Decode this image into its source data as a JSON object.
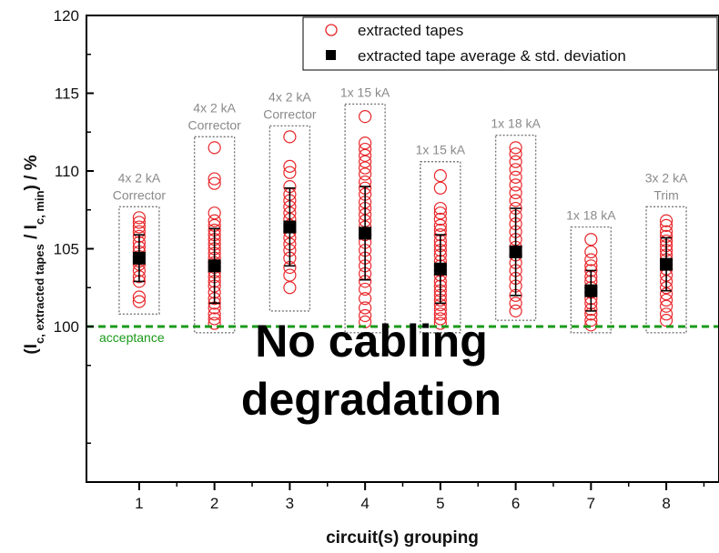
{
  "chart_data": {
    "type": "scatter",
    "xlabel": "circuit(s) grouping",
    "ylabel_parts": [
      "(I",
      "c, extracted tapes",
      " / I",
      "c, min",
      ") / %"
    ],
    "xlim": [
      0.3,
      8.7
    ],
    "ylim": [
      90,
      120
    ],
    "x_ticks": [
      1,
      2,
      3,
      4,
      5,
      6,
      7,
      8
    ],
    "y_ticks": [
      100,
      105,
      110,
      115,
      120
    ],
    "legend": {
      "position": "top-right",
      "entries": [
        {
          "label": "extracted tapes",
          "marker": "open-circle",
          "color": "#e8262a"
        },
        {
          "label": "extracted tape average & std. deviation",
          "marker": "filled-square",
          "color": "#000000"
        }
      ]
    },
    "acceptance": {
      "value": 100,
      "label": "acceptance",
      "color": "#1a9a1a"
    },
    "annotation": [
      "No cabling",
      "degradation"
    ],
    "groups": [
      {
        "x": 1,
        "label": [
          "4x 2 kA",
          "Corrector"
        ],
        "mean": 104.4,
        "std": 1.5,
        "box": [
          100.8,
          107.7
        ],
        "points": [
          101.6,
          101.9,
          102.9,
          103.2,
          103.6,
          104.0,
          104.2,
          104.5,
          104.8,
          105.1,
          105.4,
          105.8,
          106.1,
          106.4,
          106.7,
          107.0
        ]
      },
      {
        "x": 2,
        "label": [
          "4x 2 kA",
          "Corrector"
        ],
        "mean": 103.9,
        "std": 2.4,
        "box": [
          99.6,
          112.2
        ],
        "points": [
          100.2,
          100.5,
          100.8,
          101.2,
          101.5,
          101.8,
          102.2,
          102.6,
          102.9,
          103.2,
          103.5,
          103.8,
          104.1,
          104.4,
          104.7,
          105.0,
          105.3,
          105.6,
          105.9,
          106.2,
          106.5,
          106.8,
          107.3,
          109.2,
          109.5,
          111.5
        ]
      },
      {
        "x": 3,
        "label": [
          "4x 2 kA",
          "Corrector"
        ],
        "mean": 106.4,
        "std": 2.5,
        "box": [
          101.0,
          112.9
        ],
        "points": [
          102.5,
          103.3,
          103.8,
          104.4,
          104.9,
          105.3,
          105.7,
          106.1,
          106.5,
          106.9,
          107.3,
          107.7,
          108.1,
          108.5,
          109.0,
          109.9,
          110.3,
          112.2
        ]
      },
      {
        "x": 4,
        "label": [
          "1x 15 kA"
        ],
        "mean": 106.0,
        "std": 3.0,
        "box": [
          99.6,
          114.3
        ],
        "points": [
          100.3,
          100.7,
          101.2,
          101.8,
          102.4,
          102.9,
          103.4,
          103.9,
          104.4,
          104.9,
          105.4,
          105.9,
          106.4,
          106.8,
          107.2,
          107.6,
          108.0,
          108.5,
          108.9,
          109.3,
          109.8,
          110.2,
          110.6,
          111.0,
          111.4,
          111.8,
          113.5
        ]
      },
      {
        "x": 5,
        "label": [
          "1x 15 kA"
        ],
        "mean": 103.7,
        "std": 2.2,
        "box": [
          99.6,
          110.6
        ],
        "points": [
          100.2,
          100.5,
          100.8,
          101.1,
          101.4,
          101.7,
          102.0,
          102.3,
          102.6,
          102.9,
          103.3,
          103.6,
          103.9,
          104.2,
          104.6,
          104.9,
          105.2,
          105.5,
          105.9,
          106.2,
          106.5,
          106.9,
          107.3,
          107.6,
          108.9,
          109.7
        ]
      },
      {
        "x": 6,
        "label": [
          "1x 18 kA"
        ],
        "mean": 104.8,
        "std": 2.8,
        "box": [
          100.4,
          112.3
        ],
        "points": [
          101.0,
          101.5,
          102.0,
          102.6,
          103.1,
          103.6,
          104.1,
          104.6,
          105.1,
          105.6,
          106.1,
          106.6,
          107.1,
          107.6,
          108.1,
          108.6,
          109.1,
          109.6,
          110.1,
          110.6,
          111.1,
          111.5
        ]
      },
      {
        "x": 7,
        "label": [
          "1x 18 kA"
        ],
        "mean": 102.3,
        "std": 1.3,
        "box": [
          99.6,
          106.4
        ],
        "points": [
          100.1,
          100.4,
          100.8,
          101.1,
          101.5,
          101.8,
          102.2,
          102.5,
          102.9,
          103.2,
          103.6,
          103.9,
          104.3,
          104.8,
          105.6
        ]
      },
      {
        "x": 8,
        "label": [
          "3x 2 kA",
          "Trim"
        ],
        "mean": 104.0,
        "std": 1.7,
        "box": [
          99.6,
          107.7
        ],
        "points": [
          100.4,
          100.8,
          101.3,
          101.7,
          102.1,
          102.5,
          102.9,
          103.3,
          103.7,
          104.0,
          104.3,
          104.6,
          104.9,
          105.2,
          105.5,
          105.8,
          106.1,
          106.5,
          106.8
        ]
      }
    ]
  }
}
